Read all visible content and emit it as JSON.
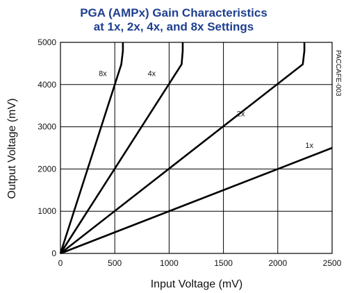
{
  "chart_data": {
    "type": "line",
    "title_lines": [
      "PGA (AMPx) Gain Characteristics",
      "at 1x, 2x, 4x, and 8x Settings"
    ],
    "xlabel": "Input Voltage (mV)",
    "ylabel": "Output Voltage (mV)",
    "xlim": [
      0,
      2500
    ],
    "ylim": [
      0,
      5000
    ],
    "xticks": [
      0,
      500,
      1000,
      1500,
      2000,
      2500
    ],
    "yticks": [
      0,
      1000,
      2000,
      3000,
      4000,
      5000
    ],
    "grid": true,
    "side_label": "PACCAFE-003",
    "series": [
      {
        "name": "8x",
        "points": [
          [
            0,
            0
          ],
          [
            560,
            4480
          ],
          [
            575,
            4800
          ],
          [
            575,
            5000
          ]
        ],
        "label_at": [
          390,
          4200
        ]
      },
      {
        "name": "4x",
        "points": [
          [
            0,
            0
          ],
          [
            1115,
            4480
          ],
          [
            1125,
            4800
          ],
          [
            1125,
            5000
          ]
        ],
        "label_at": [
          840,
          4200
        ]
      },
      {
        "name": "2x",
        "points": [
          [
            0,
            0
          ],
          [
            2230,
            4480
          ],
          [
            2245,
            4800
          ],
          [
            2245,
            5000
          ]
        ],
        "label_at": [
          1660,
          3250
        ]
      },
      {
        "name": "1x",
        "points": [
          [
            0,
            0
          ],
          [
            2500,
            2500
          ]
        ],
        "label_at": [
          2290,
          2500
        ]
      }
    ]
  }
}
